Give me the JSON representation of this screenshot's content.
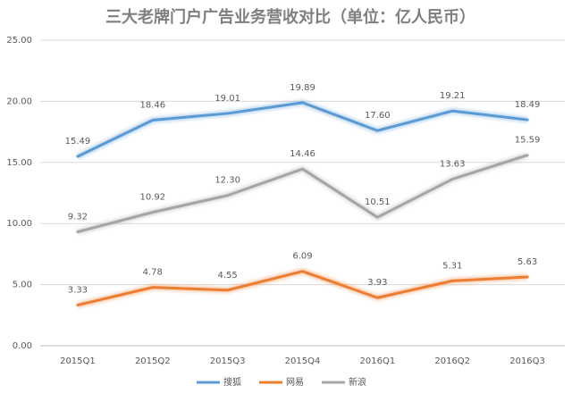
{
  "chart_data": {
    "type": "line",
    "title": "三大老牌门户广告业务营收对比（单位：亿人民币）",
    "categories": [
      "2015Q1",
      "2015Q2",
      "2015Q3",
      "2015Q4",
      "2016Q1",
      "2016Q2",
      "2016Q3"
    ],
    "series": [
      {
        "name": "搜狐",
        "color": "#5b9bd5",
        "values": [
          15.49,
          18.46,
          19.01,
          19.89,
          17.6,
          19.21,
          18.49
        ],
        "value_labels": [
          "15.49",
          "18.46",
          "19.01",
          "19.89",
          "17.60",
          "19.21",
          "18.49"
        ]
      },
      {
        "name": "网易",
        "color": "#ed7d31",
        "values": [
          3.33,
          4.78,
          4.55,
          6.09,
          3.93,
          5.31,
          5.63
        ],
        "value_labels": [
          "3.33",
          "4.78",
          "4.55",
          "6.09",
          "3.93",
          "5.31",
          "5.63"
        ]
      },
      {
        "name": "新浪",
        "color": "#a5a5a5",
        "values": [
          9.32,
          10.92,
          12.3,
          14.46,
          10.51,
          13.63,
          15.59
        ],
        "value_labels": [
          "9.32",
          "10.92",
          "12.30",
          "14.46",
          "10.51",
          "13.63",
          "15.59"
        ]
      }
    ],
    "ylim": [
      0,
      25
    ],
    "yticks": [
      {
        "value": 0,
        "label": "0.00"
      },
      {
        "value": 5,
        "label": "5.00"
      },
      {
        "value": 10,
        "label": "10.00"
      },
      {
        "value": 15,
        "label": "15.00"
      },
      {
        "value": 20,
        "label": "20.00"
      },
      {
        "value": 25,
        "label": "25.00"
      }
    ],
    "grid": true,
    "legend": "bottom"
  }
}
